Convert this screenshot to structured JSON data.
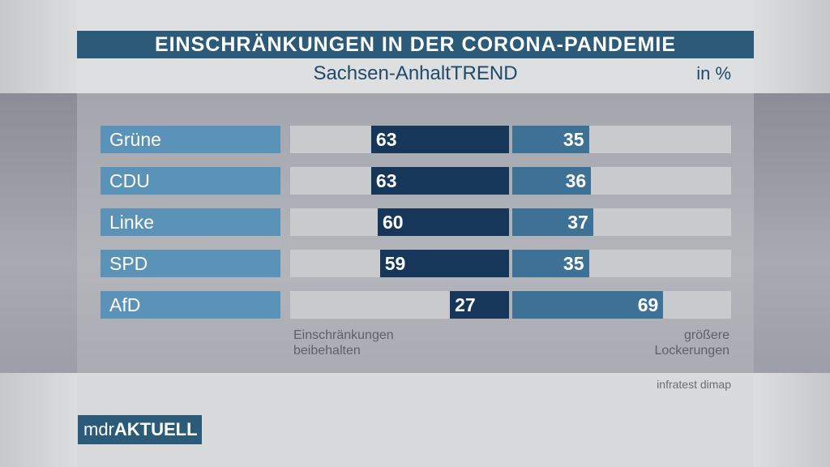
{
  "header": {
    "title": "EINSCHRÄNKUNGEN IN DER CORONA-PANDEMIE",
    "subtitle": "Sachsen-AnhaltTREND",
    "unit": "in %"
  },
  "chart_data": {
    "type": "bar",
    "categories": [
      "Grüne",
      "CDU",
      "Linke",
      "SPD",
      "AfD"
    ],
    "series": [
      {
        "name": "Einschränkungen beibehalten",
        "values": [
          63,
          63,
          60,
          59,
          27
        ],
        "color": "#17375a"
      },
      {
        "name": "größere Lockerungen",
        "values": [
          35,
          36,
          37,
          35,
          69
        ],
        "color": "#3e7196"
      }
    ],
    "ylim": [
      0,
      100
    ],
    "legend": "bottom",
    "caption_left_line1": "Einschränkungen",
    "caption_left_line2": "beibehalten",
    "caption_right_line1": "größere",
    "caption_right_line2": "Lockerungen"
  },
  "footer": {
    "source": "infratest dimap",
    "logo_prefix": "mdr",
    "logo_brand": "AKTUELL"
  },
  "colors": {
    "title_bar": "#2c5b7a",
    "party_label": "#5b92b8",
    "bar_left": "#17375a",
    "bar_right": "#3e7196"
  }
}
